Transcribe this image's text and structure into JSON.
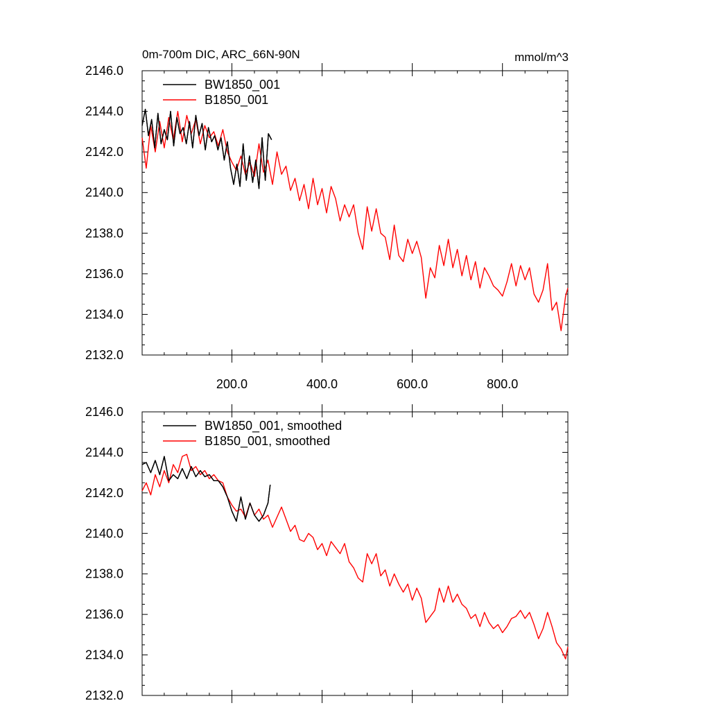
{
  "figure": {
    "title_left": "0m-700m DIC, ARC_66N-90N",
    "title_right": "mmol/m^3"
  },
  "colors": {
    "series_bw": "#000000",
    "series_b": "#ff0000",
    "axis": "#000000"
  },
  "chart_data": [
    {
      "type": "line",
      "panel": "top",
      "title": "0m-700m DIC, ARC_66N-90N",
      "units": "mmol/m^3",
      "xlabel": "",
      "ylabel": "",
      "xlim": [
        1,
        945
      ],
      "ylim": [
        2132.0,
        2146.0
      ],
      "xticks": [
        200,
        400,
        600,
        800
      ],
      "xtick_labels": [
        "200.0",
        "400.0",
        "600.0",
        "800.0"
      ],
      "yticks": [
        2132,
        2134,
        2136,
        2138,
        2140,
        2142,
        2144,
        2146
      ],
      "ytick_labels": [
        "2132.0",
        "2134.0",
        "2136.0",
        "2138.0",
        "2140.0",
        "2142.0",
        "2144.0",
        "2146.0"
      ],
      "grid": false,
      "legend_position": "top-left",
      "series": [
        {
          "name": "BW1850_001",
          "color": "#000000",
          "x": [
            1,
            8,
            15,
            22,
            29,
            36,
            43,
            50,
            57,
            64,
            71,
            78,
            85,
            92,
            99,
            106,
            113,
            120,
            127,
            134,
            141,
            148,
            155,
            162,
            169,
            176,
            183,
            190,
            197,
            204,
            211,
            218,
            225,
            232,
            239,
            246,
            253,
            260,
            267,
            274,
            281,
            288
          ],
          "values": [
            2143.3,
            2144.1,
            2142.8,
            2143.6,
            2142.2,
            2143.9,
            2142.4,
            2143.1,
            2142.6,
            2144.0,
            2142.3,
            2143.7,
            2142.9,
            2143.2,
            2142.4,
            2143.5,
            2142.2,
            2143.8,
            2142.8,
            2143.4,
            2142.1,
            2143.2,
            2142.5,
            2142.8,
            2142.1,
            2142.7,
            2141.6,
            2142.5,
            2141.2,
            2140.4,
            2141.4,
            2140.3,
            2142.4,
            2140.6,
            2141.8,
            2140.5,
            2141.6,
            2140.2,
            2142.7,
            2140.6,
            2142.9,
            2142.6
          ]
        },
        {
          "name": "B1850_001",
          "color": "#ff0000",
          "x": [
            1,
            10,
            20,
            30,
            40,
            50,
            60,
            70,
            80,
            90,
            100,
            110,
            120,
            130,
            140,
            150,
            160,
            170,
            180,
            190,
            200,
            210,
            220,
            230,
            240,
            250,
            260,
            270,
            280,
            290,
            300,
            310,
            320,
            330,
            340,
            350,
            360,
            370,
            380,
            390,
            400,
            410,
            420,
            430,
            440,
            450,
            460,
            470,
            480,
            490,
            500,
            510,
            520,
            530,
            540,
            550,
            560,
            570,
            580,
            590,
            600,
            610,
            620,
            630,
            640,
            650,
            660,
            670,
            680,
            690,
            700,
            710,
            720,
            730,
            740,
            750,
            760,
            770,
            780,
            790,
            800,
            810,
            820,
            830,
            840,
            850,
            860,
            870,
            880,
            890,
            900,
            910,
            920,
            930,
            940,
            945
          ],
          "values": [
            2142.7,
            2141.2,
            2143.3,
            2142.0,
            2143.5,
            2142.2,
            2143.7,
            2142.6,
            2144.0,
            2142.5,
            2143.8,
            2142.9,
            2143.6,
            2142.4,
            2143.3,
            2142.7,
            2143.0,
            2142.3,
            2143.1,
            2142.0,
            2141.5,
            2141.1,
            2141.8,
            2140.9,
            2141.5,
            2140.8,
            2142.4,
            2141.0,
            2141.6,
            2140.4,
            2142.0,
            2140.9,
            2141.3,
            2140.1,
            2140.7,
            2139.6,
            2140.4,
            2139.2,
            2140.7,
            2139.4,
            2140.2,
            2139.0,
            2140.3,
            2139.7,
            2138.6,
            2139.4,
            2138.8,
            2139.4,
            2138.0,
            2137.2,
            2139.3,
            2138.1,
            2139.2,
            2138.0,
            2137.8,
            2136.7,
            2138.4,
            2136.9,
            2136.6,
            2137.7,
            2137.0,
            2137.6,
            2136.8,
            2134.8,
            2136.3,
            2135.8,
            2137.4,
            2136.4,
            2137.7,
            2136.3,
            2137.2,
            2135.9,
            2136.9,
            2135.7,
            2136.6,
            2135.3,
            2136.3,
            2135.9,
            2135.4,
            2135.2,
            2134.9,
            2135.6,
            2136.5,
            2135.4,
            2136.4,
            2135.7,
            2136.3,
            2135.0,
            2134.6,
            2135.2,
            2136.5,
            2134.2,
            2134.6,
            2133.2,
            2134.9,
            2135.3
          ]
        }
      ]
    },
    {
      "type": "line",
      "panel": "bottom",
      "title": "",
      "xlabel": "",
      "ylabel": "",
      "xlim": [
        1,
        945
      ],
      "ylim": [
        2132.0,
        2146.0
      ],
      "xticks": [
        200,
        400,
        600,
        800
      ],
      "xtick_labels": [],
      "yticks": [
        2132,
        2134,
        2136,
        2138,
        2140,
        2142,
        2144,
        2146
      ],
      "ytick_labels": [
        "2132.0",
        "2134.0",
        "2136.0",
        "2138.0",
        "2140.0",
        "2142.0",
        "2144.0",
        "2146.0"
      ],
      "grid": false,
      "legend_position": "top-left",
      "series": [
        {
          "name": "BW1850_001, smoothed",
          "color": "#000000",
          "x": [
            1,
            10,
            20,
            30,
            40,
            50,
            60,
            70,
            80,
            90,
            100,
            110,
            120,
            130,
            140,
            150,
            160,
            170,
            180,
            190,
            200,
            210,
            220,
            230,
            240,
            250,
            260,
            270,
            280,
            285
          ],
          "values": [
            2143.4,
            2143.5,
            2143.0,
            2143.6,
            2142.9,
            2143.8,
            2142.6,
            2142.9,
            2142.7,
            2143.2,
            2142.7,
            2143.3,
            2142.8,
            2143.1,
            2142.8,
            2142.9,
            2142.6,
            2142.6,
            2142.3,
            2141.8,
            2141.1,
            2140.6,
            2141.8,
            2140.7,
            2141.5,
            2140.9,
            2140.6,
            2140.9,
            2141.5,
            2142.4
          ]
        },
        {
          "name": "B1850_001, smoothed",
          "color": "#ff0000",
          "x": [
            1,
            10,
            20,
            30,
            40,
            50,
            60,
            70,
            80,
            90,
            100,
            110,
            120,
            130,
            140,
            150,
            160,
            170,
            180,
            190,
            200,
            210,
            220,
            230,
            240,
            250,
            260,
            270,
            280,
            290,
            300,
            310,
            320,
            330,
            340,
            350,
            360,
            370,
            380,
            390,
            400,
            410,
            420,
            430,
            440,
            450,
            460,
            470,
            480,
            490,
            500,
            510,
            520,
            530,
            540,
            550,
            560,
            570,
            580,
            590,
            600,
            610,
            620,
            630,
            640,
            650,
            660,
            670,
            680,
            690,
            700,
            710,
            720,
            730,
            740,
            750,
            760,
            770,
            780,
            790,
            800,
            810,
            820,
            830,
            840,
            850,
            860,
            870,
            880,
            890,
            900,
            910,
            920,
            930,
            940,
            945
          ],
          "values": [
            2142.1,
            2142.5,
            2141.9,
            2142.9,
            2142.3,
            2143.1,
            2142.5,
            2143.4,
            2143.0,
            2143.8,
            2143.9,
            2143.1,
            2143.3,
            2142.9,
            2143.1,
            2142.7,
            2142.9,
            2142.6,
            2142.5,
            2141.8,
            2141.4,
            2141.1,
            2141.2,
            2140.8,
            2141.5,
            2140.9,
            2141.2,
            2140.7,
            2140.9,
            2140.3,
            2140.8,
            2141.3,
            2140.7,
            2140.1,
            2140.4,
            2139.7,
            2139.6,
            2140.0,
            2139.8,
            2139.2,
            2139.5,
            2138.9,
            2139.6,
            2139.3,
            2139.0,
            2139.5,
            2138.6,
            2138.3,
            2137.8,
            2137.6,
            2139.0,
            2138.5,
            2139.0,
            2137.9,
            2138.2,
            2137.4,
            2138.0,
            2137.5,
            2137.1,
            2137.5,
            2136.7,
            2137.3,
            2136.8,
            2135.6,
            2135.9,
            2136.2,
            2137.3,
            2136.6,
            2137.4,
            2136.6,
            2137.0,
            2136.5,
            2136.3,
            2135.8,
            2136.0,
            2135.4,
            2136.1,
            2135.6,
            2135.3,
            2135.5,
            2135.1,
            2135.4,
            2135.8,
            2135.9,
            2136.2,
            2135.8,
            2136.1,
            2135.5,
            2134.8,
            2135.3,
            2136.1,
            2135.4,
            2134.6,
            2134.3,
            2133.8,
            2134.4
          ]
        }
      ]
    }
  ]
}
